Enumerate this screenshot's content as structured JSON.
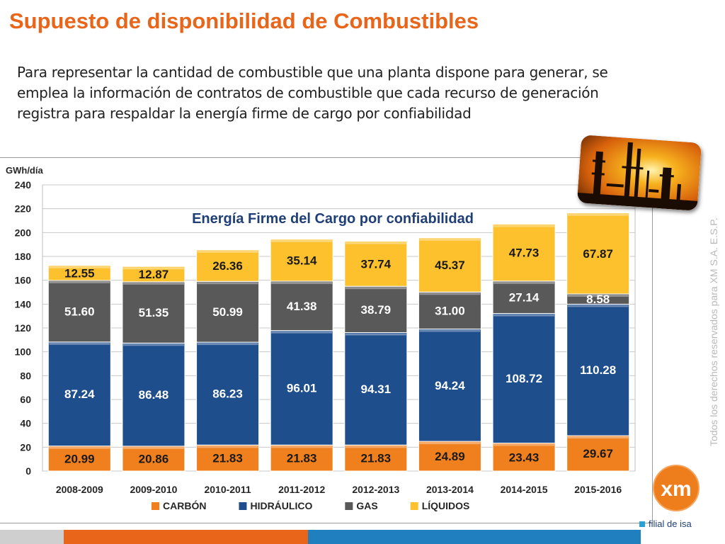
{
  "slide": {
    "title": "Supuesto de disponibilidad de Combustibles",
    "intro": "Para representar la cantidad de combustible que una planta dispone para generar, se emplea la información de contratos de combustible que cada recurso de generación registra para respaldar la energía firme de cargo por confiabilidad",
    "watermark": "Todos los derechos reservados para XM S.A. E.S.P.",
    "logo_text": "xm",
    "filial_text": "filial de isa"
  },
  "colors": {
    "title": "#e8651a",
    "carbon": "#f07f1e",
    "hidraulico": "#1f4e8c",
    "gas": "#595959",
    "liquidos": "#fcc12d",
    "chart_title": "#1f3f78"
  },
  "chart_data": {
    "type": "bar",
    "stacked": true,
    "title": "Energía Firme del Cargo por confiabilidad",
    "ylabel": "GWh/día",
    "xlabel": "",
    "ylim": [
      0,
      240
    ],
    "yticks": [
      0,
      20,
      40,
      60,
      80,
      100,
      120,
      140,
      160,
      180,
      200,
      220,
      240
    ],
    "grid": true,
    "legend_position": "bottom",
    "categories": [
      "2008-2009",
      "2009-2010",
      "2010-2011",
      "2011-2012",
      "2012-2013",
      "2013-2014",
      "2014-2015",
      "2015-2016"
    ],
    "series": [
      {
        "name": "CARBÓN",
        "color": "#f07f1e",
        "values": [
          20.99,
          20.86,
          21.83,
          21.83,
          21.83,
          24.89,
          23.43,
          29.67
        ]
      },
      {
        "name": "HIDRÁULICO",
        "color": "#1f4e8c",
        "values": [
          87.24,
          86.48,
          86.23,
          96.01,
          94.31,
          94.24,
          108.72,
          110.28
        ]
      },
      {
        "name": "GAS",
        "color": "#595959",
        "values": [
          51.6,
          51.35,
          50.99,
          41.38,
          38.79,
          31.0,
          27.14,
          8.58
        ]
      },
      {
        "name": "LÍQUIDOS",
        "color": "#fcc12d",
        "values": [
          12.55,
          12.87,
          26.36,
          35.14,
          37.74,
          45.37,
          47.73,
          67.87
        ]
      }
    ],
    "data_labels": [
      [
        "20.99",
        "20.86",
        "21.83",
        "21.83",
        "21.83",
        "24.89",
        "23.43",
        "29.67"
      ],
      [
        "87.24",
        "86.48",
        "86.23",
        "96.01",
        "94.31",
        "94.24",
        "108.72",
        "110.28"
      ],
      [
        "51.60",
        "51.35",
        "50.99",
        "41.38",
        "38.79",
        "31.00",
        "27.14",
        "8.58"
      ],
      [
        "12.55",
        "12.87",
        "26.36",
        "35.14",
        "37.74",
        "45.37",
        "47.73",
        "67.87"
      ]
    ]
  }
}
